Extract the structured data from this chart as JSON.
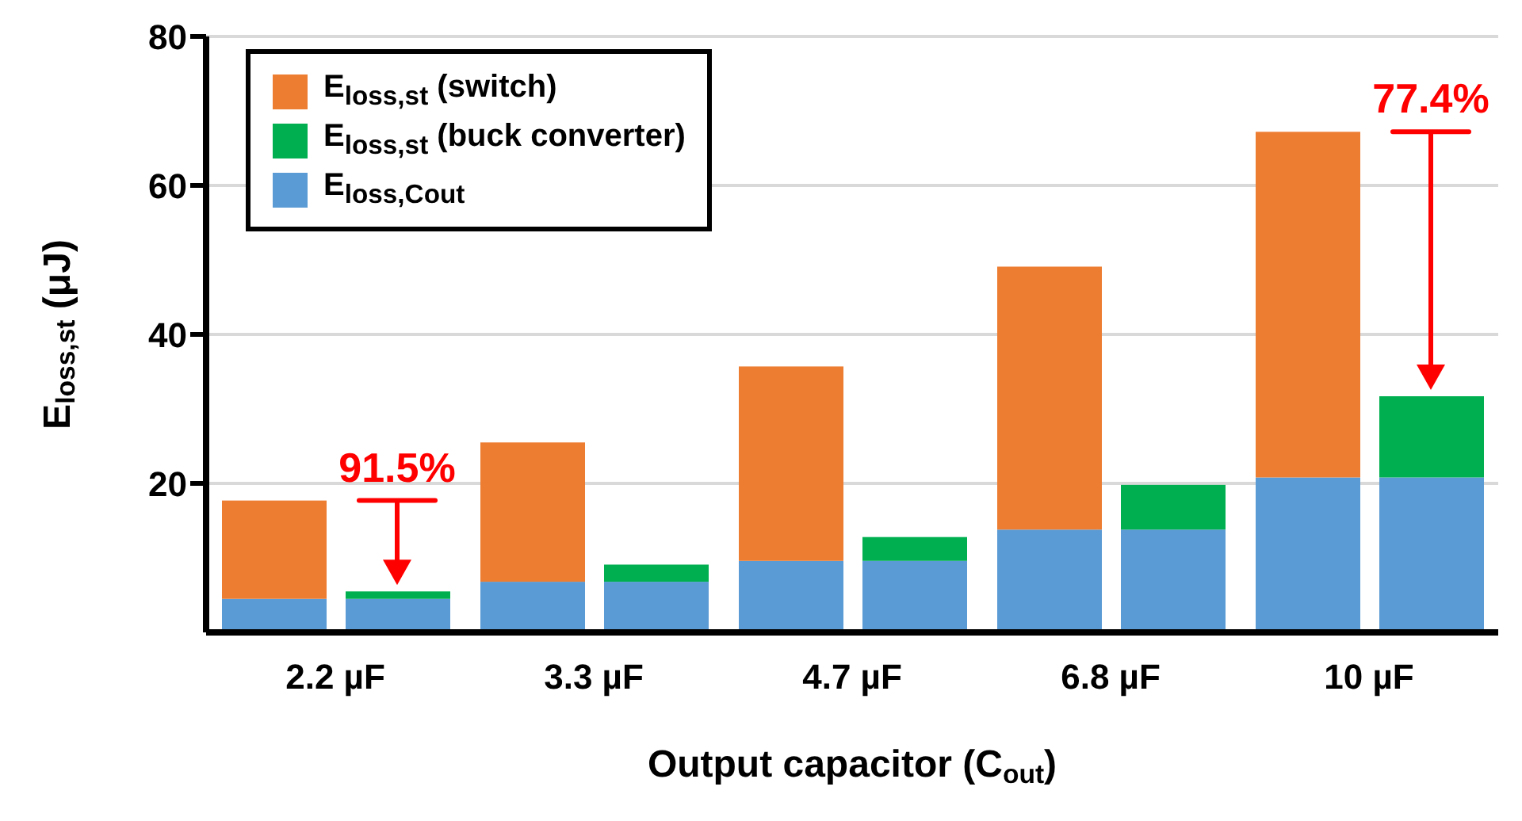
{
  "chart_data": {
    "type": "bar",
    "xlabel": "Output capacitor (C$_{out}$)",
    "ylabel": "E$_{loss,st}$ (μJ)",
    "categories": [
      "2.2 µF",
      "3.3 µF",
      "4.7 µF",
      "6.8 µF",
      "10 µF"
    ],
    "series": [
      {
        "name": "E$_{loss,Cout}$",
        "color": "#5b9bd5",
        "base": [
          0,
          0,
          0,
          0,
          0
        ],
        "values": [
          4.5,
          6.8,
          9.6,
          13.8,
          20.8
        ]
      },
      {
        "color": "#5b9bd5",
        "base": [
          0,
          0,
          0,
          0,
          0
        ],
        "values": [
          4.5,
          6.8,
          9.6,
          13.8,
          20.8
        ]
      },
      {
        "name": "E$_{loss,st}$ (buck converter)",
        "color": "#00b050",
        "base": [
          4.5,
          6.8,
          9.6,
          13.8,
          20.8
        ],
        "values": [
          1.0,
          2.3,
          3.2,
          6.0,
          10.9
        ]
      },
      {
        "name": "E$_{loss,st}$ (switch)",
        "color": "#ed7d31",
        "base": [
          4.5,
          6.8,
          9.6,
          13.8,
          20.8
        ],
        "values": [
          13.2,
          18.7,
          26.1,
          35.3,
          46.4
        ]
      }
    ],
    "ylim": [
      0,
      80
    ],
    "yticks": [
      20,
      40,
      60,
      80
    ],
    "grid": "y",
    "legend": "top left",
    "annotations": [
      "91.5%",
      "77.4%"
    ]
  }
}
